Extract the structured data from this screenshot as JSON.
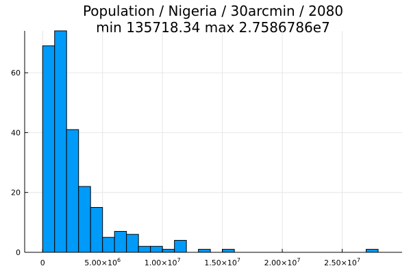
{
  "chart_data": {
    "type": "bar",
    "title": "Population / Nigeria / 30arcmin / 2080",
    "subtitle": "min 135718.34  max 2.7586786e7",
    "xlabel": "",
    "ylabel": "",
    "bar_color": "#009af9",
    "bar_edge_color": "#000000",
    "grid": true,
    "legend": "none",
    "xlim": [
      -1500000,
      30000000
    ],
    "ylim": [
      0,
      74
    ],
    "bin_width": 1000000,
    "bins": [
      {
        "x0": 0,
        "x1": 1000000,
        "count": 69
      },
      {
        "x0": 1000000,
        "x1": 2000000,
        "count": 74
      },
      {
        "x0": 2000000,
        "x1": 3000000,
        "count": 41
      },
      {
        "x0": 3000000,
        "x1": 4000000,
        "count": 22
      },
      {
        "x0": 4000000,
        "x1": 5000000,
        "count": 15
      },
      {
        "x0": 5000000,
        "x1": 6000000,
        "count": 5
      },
      {
        "x0": 6000000,
        "x1": 7000000,
        "count": 7
      },
      {
        "x0": 7000000,
        "x1": 8000000,
        "count": 6
      },
      {
        "x0": 8000000,
        "x1": 9000000,
        "count": 2
      },
      {
        "x0": 9000000,
        "x1": 10000000,
        "count": 2
      },
      {
        "x0": 10000000,
        "x1": 11000000,
        "count": 1
      },
      {
        "x0": 11000000,
        "x1": 12000000,
        "count": 4
      },
      {
        "x0": 13000000,
        "x1": 14000000,
        "count": 1
      },
      {
        "x0": 15000000,
        "x1": 16000000,
        "count": 1
      },
      {
        "x0": 27000000,
        "x1": 28000000,
        "count": 1
      }
    ],
    "x_ticks": [
      {
        "value": 0,
        "base": "0",
        "exp": ""
      },
      {
        "value": 5000000,
        "base": "5.00×10",
        "exp": "6"
      },
      {
        "value": 10000000,
        "base": "1.00×10",
        "exp": "7"
      },
      {
        "value": 15000000,
        "base": "1.50×10",
        "exp": "7"
      },
      {
        "value": 20000000,
        "base": "2.00×10",
        "exp": "7"
      },
      {
        "value": 25000000,
        "base": "2.50×10",
        "exp": "7"
      }
    ],
    "y_ticks": [
      {
        "value": 0,
        "label": "0"
      },
      {
        "value": 20,
        "label": "20"
      },
      {
        "value": 40,
        "label": "40"
      },
      {
        "value": 60,
        "label": "60"
      }
    ]
  }
}
